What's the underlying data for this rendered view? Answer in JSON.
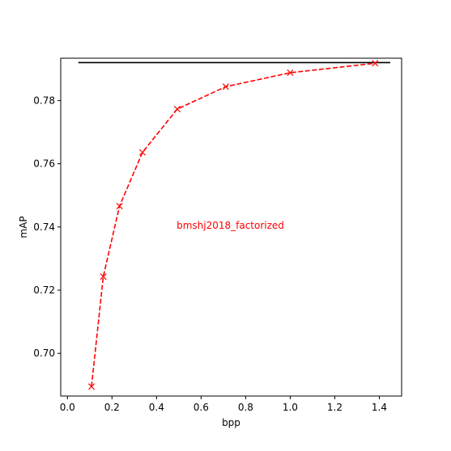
{
  "chart_data": {
    "type": "line",
    "title": "",
    "xlabel": "bpp",
    "ylabel": "mAP",
    "xlim": [
      -0.03,
      1.5
    ],
    "ylim": [
      0.6865,
      0.7934
    ],
    "xticks": [
      0.0,
      0.2,
      0.4,
      0.6,
      0.8,
      1.0,
      1.2,
      1.4
    ],
    "xtick_labels": [
      "0.0",
      "0.2",
      "0.4",
      "0.6",
      "0.8",
      "1.0",
      "1.2",
      "1.4"
    ],
    "yticks": [
      0.7,
      0.72,
      0.74,
      0.76,
      0.78
    ],
    "ytick_labels": [
      "0.70",
      "0.72",
      "0.74",
      "0.76",
      "0.78"
    ],
    "grid": false,
    "series": [
      {
        "style": "dashed-line-with-x-markers",
        "color": "#ff0000",
        "x": [
          0.108,
          0.161,
          0.234,
          0.337,
          0.493,
          0.711,
          1.0,
          1.381
        ],
        "y": [
          0.6895,
          0.7243,
          0.7466,
          0.7636,
          0.7773,
          0.7844,
          0.7888,
          0.7918
        ]
      }
    ],
    "reference_line": {
      "color": "#000000",
      "y": 0.792,
      "x_range": [
        0.049,
        1.449
      ]
    },
    "annotations": [
      {
        "text": "bmshj2018_factorized",
        "x": 0.49,
        "y": 0.7405,
        "color": "#ff0000"
      }
    ]
  }
}
